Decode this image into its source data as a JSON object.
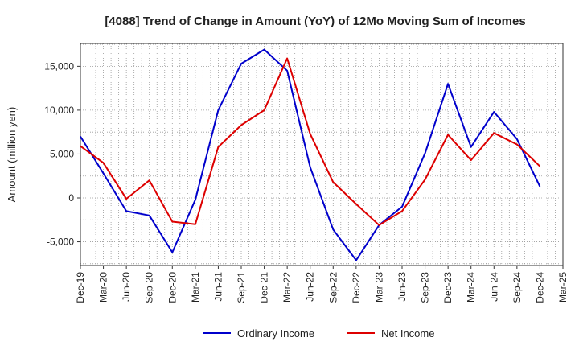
{
  "chart_data": {
    "type": "line",
    "title": "[4088]  Trend of Change in Amount (YoY) of 12Mo Moving Sum of Incomes",
    "ylabel": "Amount (million yen)",
    "xlabel": "",
    "ylim": [
      -7700,
      17600
    ],
    "yticks": [
      -5000,
      0,
      5000,
      10000,
      15000
    ],
    "ytick_labels": [
      "-5,000",
      "0",
      "5,000",
      "10,000",
      "15,000"
    ],
    "categories": [
      "Dec-19",
      "Mar-20",
      "Jun-20",
      "Sep-20",
      "Dec-20",
      "Mar-21",
      "Jun-21",
      "Sep-21",
      "Dec-21",
      "Mar-22",
      "Jun-22",
      "Sep-22",
      "Dec-22",
      "Mar-23",
      "Jun-23",
      "Sep-23",
      "Dec-23",
      "Mar-24",
      "Jun-24",
      "Sep-24",
      "Dec-24",
      "Mar-25"
    ],
    "grid": true,
    "legend_position": "bottom-center",
    "series": [
      {
        "name": "Ordinary Income",
        "color": "#0000cc",
        "values": [
          7000,
          2800,
          -1500,
          -2000,
          -6200,
          -200,
          10000,
          15300,
          16900,
          14500,
          3500,
          -3600,
          -7100,
          -3100,
          -1000,
          5100,
          13000,
          5800,
          9800,
          6700,
          1300,
          null
        ]
      },
      {
        "name": "Net Income",
        "color": "#dd0000",
        "values": [
          5900,
          4000,
          -100,
          2000,
          -2700,
          -3000,
          5800,
          8300,
          10000,
          15900,
          7300,
          1800,
          -700,
          -3100,
          -1500,
          2100,
          7200,
          4300,
          7400,
          6100,
          3600,
          null
        ]
      }
    ]
  }
}
